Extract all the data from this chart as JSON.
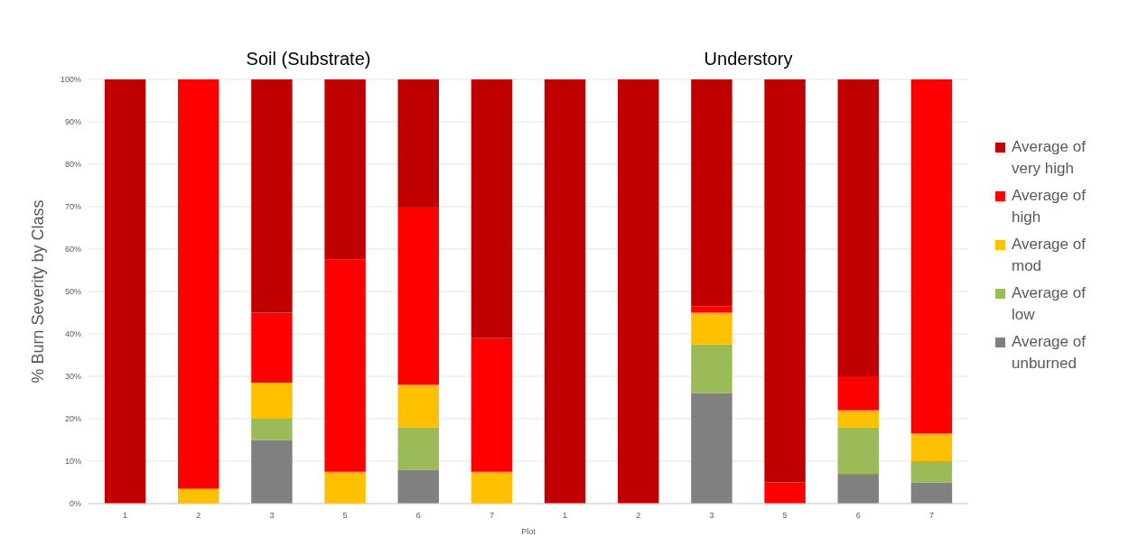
{
  "chart_data": {
    "type": "bar",
    "stacked": true,
    "xlabel": "Plot",
    "ylabel": "% Burn Severity by Class",
    "annotations": [
      "Soil (Substrate)",
      "Understory"
    ],
    "categories": [
      "1",
      "2",
      "3",
      "5",
      "6",
      "7",
      "1",
      "2",
      "3",
      "5",
      "6",
      "7"
    ],
    "series": [
      {
        "name": "Average of unburned",
        "color": "#808080",
        "values": [
          0,
          0,
          15,
          0,
          8,
          0,
          0,
          0,
          26,
          0,
          7,
          5
        ]
      },
      {
        "name": "Average of low",
        "color": "#9bbb59",
        "values": [
          0,
          0,
          5,
          0,
          10,
          0,
          0,
          0,
          11.5,
          0,
          11,
          5
        ]
      },
      {
        "name": "Average of mod",
        "color": "#ffc000",
        "values": [
          0,
          3.5,
          8.5,
          7.5,
          10,
          7.5,
          0,
          0,
          7.5,
          0,
          4,
          6.5
        ]
      },
      {
        "name": "Average of high",
        "color": "#ff0000",
        "values": [
          0,
          96.5,
          16.5,
          50,
          42,
          31.5,
          0,
          0,
          1.5,
          5,
          8,
          83.5
        ]
      },
      {
        "name": "Average of very high",
        "color": "#c00000",
        "values": [
          100,
          0,
          55,
          42.5,
          30,
          61,
          100,
          100,
          53.5,
          95,
          70,
          0
        ]
      }
    ],
    "ylim": [
      0,
      100
    ],
    "yticks": [
      {
        "value": 0,
        "label": "0%"
      },
      {
        "value": 10,
        "label": "10%"
      },
      {
        "value": 20,
        "label": "20%"
      },
      {
        "value": 30,
        "label": "30%"
      },
      {
        "value": 40,
        "label": "40%"
      },
      {
        "value": 50,
        "label": "50%"
      },
      {
        "value": 60,
        "label": "60%"
      },
      {
        "value": 70,
        "label": "70%"
      },
      {
        "value": 80,
        "label": "80%"
      },
      {
        "value": 90,
        "label": "90%"
      },
      {
        "value": 100,
        "label": "100%"
      }
    ],
    "grid": "y",
    "legend": "right"
  }
}
